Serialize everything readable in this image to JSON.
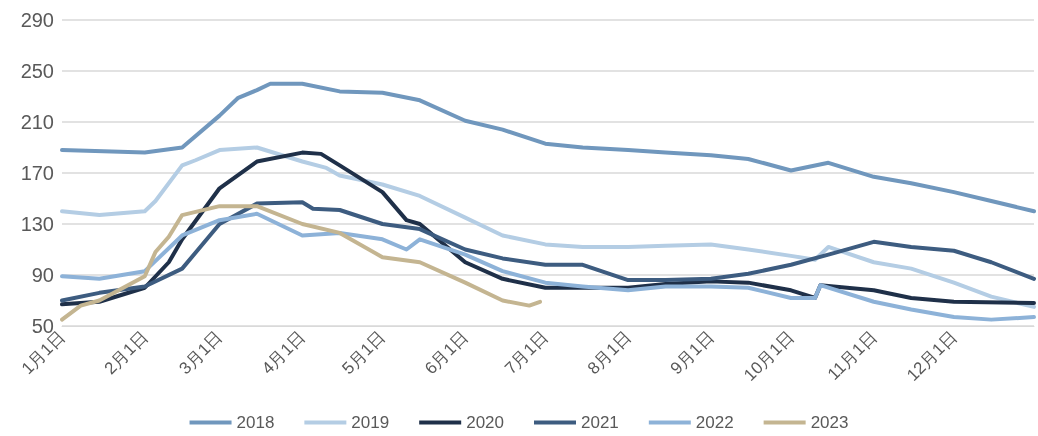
{
  "chart_data": {
    "type": "line",
    "xlim": [
      "--01-01",
      "--12-31"
    ],
    "ylim": [
      50,
      290
    ],
    "yticks": [
      50,
      90,
      130,
      170,
      210,
      250,
      290
    ],
    "xticks": [
      {
        "value": "--01-01",
        "label": "1月1日"
      },
      {
        "value": "--02-01",
        "label": "2月1日"
      },
      {
        "value": "--03-01",
        "label": "3月1日"
      },
      {
        "value": "--04-01",
        "label": "4月1日"
      },
      {
        "value": "--05-01",
        "label": "5月1日"
      },
      {
        "value": "--06-01",
        "label": "6月1日"
      },
      {
        "value": "--07-01",
        "label": "7月1日"
      },
      {
        "value": "--08-01",
        "label": "8月1日"
      },
      {
        "value": "--09-01",
        "label": "9月1日"
      },
      {
        "value": "--10-01",
        "label": "10月1日"
      },
      {
        "value": "--11-01",
        "label": "11月1日"
      },
      {
        "value": "--12-01",
        "label": "12月1日"
      }
    ],
    "grid": "y",
    "legend": "bottom",
    "marker": "none",
    "line_style": "solid",
    "series": [
      {
        "name": "2018",
        "color": "#7097bd",
        "x": [
          "--01-01",
          "--02-01",
          "--02-15",
          "--03-01",
          "--03-08",
          "--03-15",
          "--03-20",
          "--04-01",
          "--04-15",
          "--05-01",
          "--05-15",
          "--06-01",
          "--06-15",
          "--07-01",
          "--07-15",
          "--08-01",
          "--08-15",
          "--09-01",
          "--09-15",
          "--10-01",
          "--10-15",
          "--11-01",
          "--11-15",
          "--12-01",
          "--12-15",
          "--12-31"
        ],
        "values": [
          188,
          186,
          190,
          215,
          229,
          235,
          240,
          240,
          234,
          233,
          227,
          211,
          204,
          193,
          190,
          188,
          186,
          184,
          181,
          172,
          178,
          167,
          162,
          155,
          148,
          140
        ]
      },
      {
        "name": "2019",
        "color": "#b4cde4",
        "x": [
          "--01-01",
          "--01-15",
          "--02-01",
          "--02-05",
          "--02-15",
          "--02-20",
          "--03-01",
          "--03-15",
          "--04-01",
          "--04-10",
          "--04-15",
          "--05-01",
          "--05-15",
          "--06-01",
          "--06-15",
          "--07-01",
          "--07-15",
          "--08-01",
          "--08-15",
          "--09-01",
          "--09-15",
          "--10-01",
          "--10-10",
          "--10-15",
          "--11-01",
          "--11-15",
          "--12-01",
          "--12-15",
          "--12-31"
        ],
        "values": [
          140,
          137,
          140,
          148,
          176,
          180,
          188,
          190,
          179,
          174,
          168,
          161,
          152,
          135,
          121,
          114,
          112,
          112,
          113,
          114,
          110,
          105,
          102,
          112,
          100,
          95,
          84,
          73,
          65
        ]
      },
      {
        "name": "2020",
        "color": "#1f3049",
        "x": [
          "--01-01",
          "--01-15",
          "--02-01",
          "--02-10",
          "--02-15",
          "--03-01",
          "--03-15",
          "--04-01",
          "--04-08",
          "--04-15",
          "--05-01",
          "--05-10",
          "--05-15",
          "--06-01",
          "--06-15",
          "--07-01",
          "--08-01",
          "--08-15",
          "--09-01",
          "--09-15",
          "--10-01",
          "--10-10",
          "--10-12",
          "--11-01",
          "--11-15",
          "--12-01",
          "--12-31"
        ],
        "values": [
          67,
          69,
          80,
          100,
          118,
          158,
          179,
          186,
          185,
          176,
          155,
          133,
          130,
          100,
          87,
          80,
          80,
          83,
          85,
          84,
          78,
          72,
          82,
          78,
          72,
          69,
          68
        ]
      },
      {
        "name": "2021",
        "color": "#3d5c80",
        "x": [
          "--01-01",
          "--01-15",
          "--02-01",
          "--02-15",
          "--02-25",
          "--03-01",
          "--03-15",
          "--04-01",
          "--04-05",
          "--04-15",
          "--05-01",
          "--05-15",
          "--06-01",
          "--06-15",
          "--07-01",
          "--07-15",
          "--08-01",
          "--08-15",
          "--09-01",
          "--09-15",
          "--10-01",
          "--10-15",
          "--11-01",
          "--11-15",
          "--12-01",
          "--12-15",
          "--12-31"
        ],
        "values": [
          70,
          76,
          81,
          95,
          120,
          130,
          146,
          147,
          142,
          141,
          130,
          126,
          110,
          103,
          98,
          98,
          86,
          86,
          87,
          91,
          98,
          106,
          116,
          112,
          109,
          100,
          87
        ]
      },
      {
        "name": "2022",
        "color": "#8db2d8",
        "x": [
          "--01-01",
          "--01-15",
          "--02-01",
          "--02-15",
          "--03-01",
          "--03-15",
          "--04-01",
          "--04-15",
          "--05-01",
          "--05-10",
          "--05-15",
          "--06-01",
          "--06-15",
          "--07-01",
          "--07-15",
          "--08-01",
          "--08-15",
          "--09-01",
          "--09-15",
          "--10-01",
          "--10-10",
          "--10-12",
          "--11-01",
          "--11-15",
          "--12-01",
          "--12-15",
          "--12-31"
        ],
        "values": [
          89,
          87,
          93,
          121,
          133,
          138,
          121,
          123,
          118,
          110,
          118,
          106,
          93,
          84,
          81,
          78,
          81,
          81,
          80,
          72,
          72,
          82,
          69,
          63,
          57,
          55,
          57
        ]
      },
      {
        "name": "2023",
        "color": "#c4b591",
        "x": [
          "--01-01",
          "--01-08",
          "--01-15",
          "--02-01",
          "--02-05",
          "--02-10",
          "--02-15",
          "--03-01",
          "--03-15",
          "--04-01",
          "--04-15",
          "--05-01",
          "--05-15",
          "--06-01",
          "--06-15",
          "--06-25",
          "--06-29"
        ],
        "values": [
          55,
          66,
          70,
          89,
          108,
          120,
          137,
          144,
          144,
          130,
          123,
          104,
          100,
          84,
          70,
          66,
          69
        ]
      }
    ]
  }
}
